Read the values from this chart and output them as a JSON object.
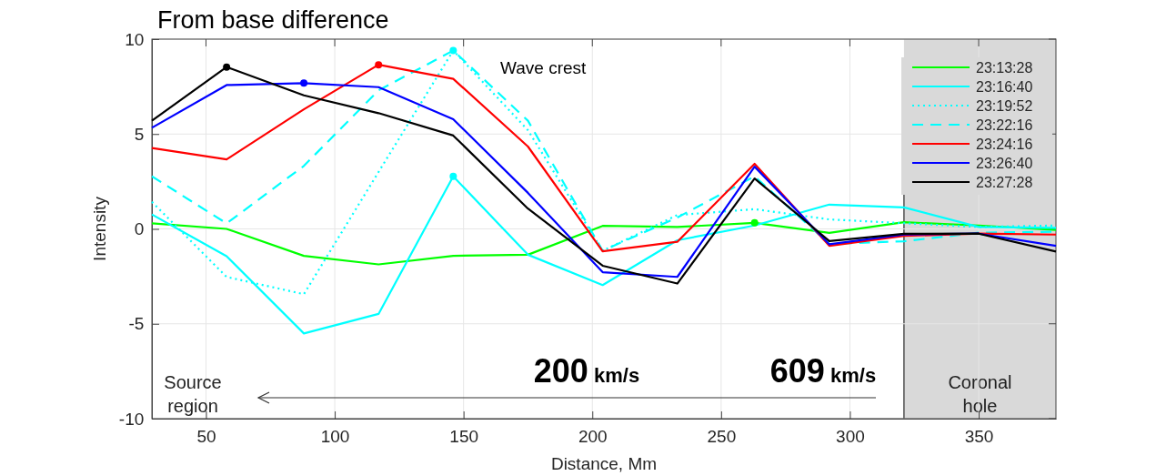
{
  "chart_data": {
    "type": "line",
    "title": "From base difference",
    "xlabel": "Distance, Mm",
    "ylabel": "Intensity",
    "x": [
      29,
      58,
      88,
      117,
      146,
      175,
      204,
      233,
      263,
      292,
      321,
      350,
      380
    ],
    "xlim": [
      29,
      380
    ],
    "xticks": [
      50,
      100,
      150,
      200,
      250,
      300,
      350
    ],
    "ylim": [
      -10,
      10
    ],
    "yticks": [
      -10,
      -5,
      0,
      5,
      10
    ],
    "grid": true,
    "legend": "top right",
    "marker": "none",
    "series": [
      {
        "name": "23:13:28",
        "color": "#00ff00",
        "line_style": "solid",
        "values": [
          0.29,
          0,
          -1.42,
          -1.87,
          -1.42,
          -1.36,
          0.16,
          0.1,
          0.32,
          -0.21,
          0.35,
          0.18,
          -0.05
        ]
      },
      {
        "name": "23:16:40",
        "color": "#00ffff",
        "line_style": "solid",
        "values": [
          0.76,
          -1.44,
          -5.51,
          -4.48,
          2.77,
          -1.36,
          -2.96,
          -0.6,
          0.18,
          1.28,
          1.13,
          0.1,
          0.05
        ]
      },
      {
        "name": "23:19:52",
        "color": "#00ffff",
        "line_style": "dotted",
        "values": [
          1.43,
          -2.53,
          -3.44,
          3.0,
          9.4,
          5.2,
          -1.15,
          0.73,
          1.04,
          0.5,
          0.3,
          0.1,
          0.18
        ]
      },
      {
        "name": "23:22:16",
        "color": "#00ffff",
        "line_style": "dashed",
        "values": [
          2.77,
          0.29,
          3.32,
          7.3,
          9.4,
          5.7,
          -1.15,
          0.6,
          2.77,
          -0.8,
          -0.65,
          -0.2,
          -0.15
        ]
      },
      {
        "name": "23:24:16",
        "color": "#ff0000",
        "line_style": "solid",
        "values": [
          4.26,
          3.66,
          6.3,
          8.65,
          7.91,
          4.34,
          -1.18,
          -0.68,
          3.43,
          -0.89,
          -0.37,
          -0.25,
          -0.3
        ]
      },
      {
        "name": "23:26:40",
        "color": "#0000ff",
        "line_style": "solid",
        "values": [
          5.33,
          7.58,
          7.68,
          7.47,
          5.78,
          1.9,
          -2.28,
          -2.53,
          3.28,
          -0.81,
          -0.3,
          -0.25,
          -0.89
        ]
      },
      {
        "name": "23:27:28",
        "color": "#000000",
        "line_style": "solid",
        "values": [
          5.7,
          8.53,
          7.04,
          6.1,
          4.92,
          1.07,
          -1.94,
          -2.88,
          2.66,
          -0.64,
          -0.26,
          -0.25,
          -1.19
        ]
      },
      {
        "type": "scatter",
        "marker": "circle",
        "x": [
          58,
          88,
          117,
          146,
          146,
          263
        ],
        "values": [
          8.53,
          7.68,
          8.65,
          9.4,
          2.77,
          0.32
        ],
        "colors": [
          "#000000",
          "#0000ff",
          "#ff0000",
          "#00ffff",
          "#00ffff",
          "#00ff00"
        ]
      }
    ],
    "ref_lines": [
      {
        "axis": "x",
        "value": 321,
        "color": "#000000"
      }
    ],
    "bands": [
      {
        "axis": "x",
        "from": 321,
        "to": 380,
        "label": "Coronal hole",
        "color": "#d9d9d9"
      }
    ],
    "annotations": [
      "Wave crest",
      "Source region",
      "200 km/s",
      "609 km/s"
    ]
  }
}
